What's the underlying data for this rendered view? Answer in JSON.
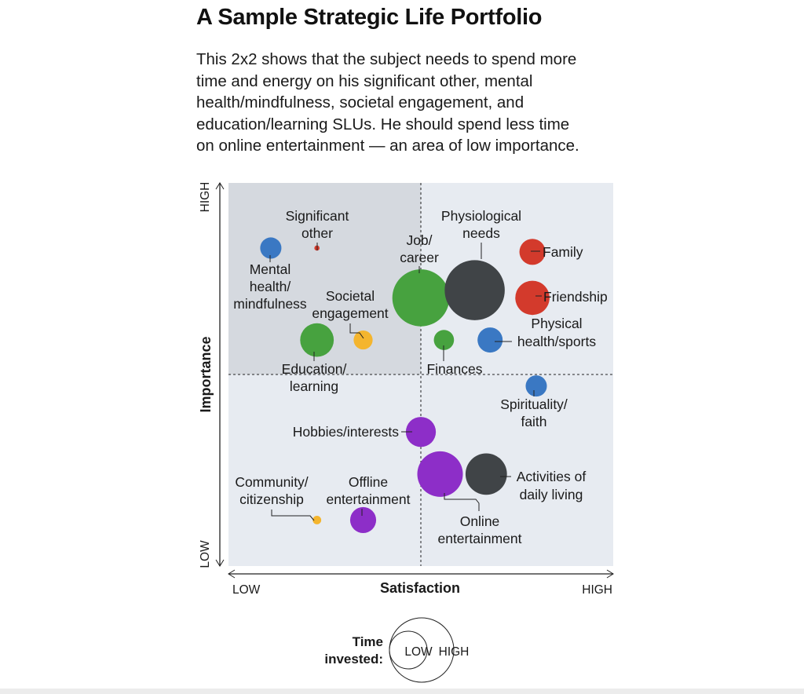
{
  "title": "A Sample Strategic Life Portfolio",
  "subtitle_lines": [
    "This 2x2 shows that the subject needs to spend more",
    "time and energy on his significant other, mental",
    "health/mindfulness, societal engagement, and",
    "education/learning SLUs. He should spend less time",
    "on online entertainment — an area of low importance."
  ],
  "chart_data": {
    "type": "scatter",
    "subtype": "bubble",
    "title": "A Sample Strategic Life Portfolio",
    "xlabel": "Satisfaction",
    "ylabel": "Importance",
    "x_tick_labels": [
      "LOW",
      "HIGH"
    ],
    "y_tick_labels": [
      "LOW",
      "HIGH"
    ],
    "xlim": [
      0,
      10
    ],
    "ylim": [
      0,
      10
    ],
    "quadrant_divider": {
      "x": 5,
      "y": 5
    },
    "highlighted_quadrant": "top-left",
    "size_legend": {
      "title_lines": [
        "Time",
        "invested:"
      ],
      "labels": [
        "LOW",
        "HIGH"
      ]
    },
    "colors": {
      "red": "#d33a2c",
      "blue": "#3a78c3",
      "green": "#47a23f",
      "dark": "#404447",
      "purple": "#8d2ec8",
      "yellow": "#f4b52e",
      "plot_bg": "#e7ebf1",
      "quadrant_bg": "#d5d9df"
    },
    "series": [
      {
        "name": "Significant other",
        "label_lines": [
          "Significant",
          "other"
        ],
        "x": 2.3,
        "y": 8.3,
        "size": 0.3,
        "color": "red"
      },
      {
        "name": "Mental health/mindfulness",
        "label_lines": [
          "Mental",
          "health/",
          "mindfulness"
        ],
        "x": 1.1,
        "y": 8.3,
        "size": 5,
        "color": "blue"
      },
      {
        "name": "Societal engagement",
        "label_lines": [
          "Societal",
          "engagement"
        ],
        "x": 3.5,
        "y": 5.9,
        "size": 4,
        "color": "yellow"
      },
      {
        "name": "Education/learning",
        "label_lines": [
          "Education/",
          "learning"
        ],
        "x": 2.3,
        "y": 5.9,
        "size": 12.5,
        "color": "green"
      },
      {
        "name": "Job/career",
        "label_lines": [
          "Job/",
          "career"
        ],
        "x": 5.0,
        "y": 7.0,
        "size": 36,
        "color": "green"
      },
      {
        "name": "Physiological needs",
        "label_lines": [
          "Physiological",
          "needs"
        ],
        "x": 6.4,
        "y": 7.2,
        "size": 40,
        "color": "dark"
      },
      {
        "name": "Family",
        "label_lines": [
          "Family"
        ],
        "x": 7.9,
        "y": 8.2,
        "size": 7.5,
        "color": "red"
      },
      {
        "name": "Friendship",
        "label_lines": [
          "Friendship"
        ],
        "x": 7.9,
        "y": 7.0,
        "size": 13,
        "color": "red"
      },
      {
        "name": "Physical health/sports",
        "label_lines": [
          "Physical",
          "health/sports"
        ],
        "x": 6.8,
        "y": 5.9,
        "size": 7,
        "color": "blue"
      },
      {
        "name": "Finances",
        "label_lines": [
          "Finances"
        ],
        "x": 5.6,
        "y": 5.9,
        "size": 4.5,
        "color": "green"
      },
      {
        "name": "Spirituality/faith",
        "label_lines": [
          "Spirituality/",
          "faith"
        ],
        "x": 8.0,
        "y": 4.7,
        "size": 5,
        "color": "blue"
      },
      {
        "name": "Hobbies/interests",
        "label_lines": [
          "Hobbies/interests"
        ],
        "x": 5.0,
        "y": 3.5,
        "size": 10,
        "color": "purple"
      },
      {
        "name": "Online entertainment",
        "label_lines": [
          "Online",
          "entertainment"
        ],
        "x": 5.5,
        "y": 2.4,
        "size": 23,
        "color": "purple"
      },
      {
        "name": "Activities of daily living",
        "label_lines": [
          "Activities of",
          "daily living"
        ],
        "x": 6.7,
        "y": 2.4,
        "size": 19,
        "color": "dark"
      },
      {
        "name": "Community/citizenship",
        "label_lines": [
          "Community/",
          "citizenship"
        ],
        "x": 2.3,
        "y": 1.2,
        "size": 0.8,
        "color": "yellow"
      },
      {
        "name": "Offline entertainment",
        "label_lines": [
          "Offline",
          "entertainment"
        ],
        "x": 3.5,
        "y": 1.2,
        "size": 7.5,
        "color": "purple"
      }
    ]
  }
}
